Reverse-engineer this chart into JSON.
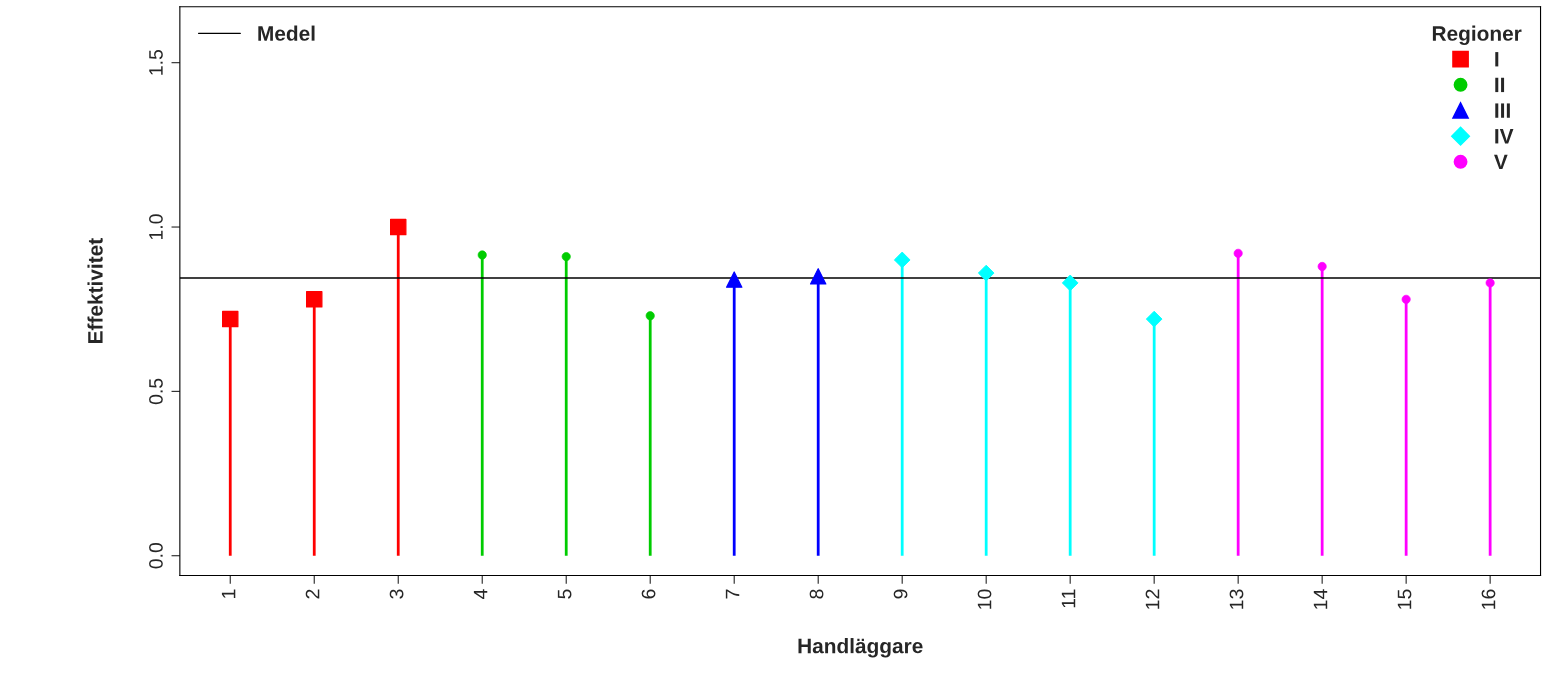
{
  "chart_data": {
    "type": "lollipop",
    "xlabel": "Handläggare",
    "ylabel": "Effektivitet",
    "legend_title": "Regioner",
    "legend": "top right",
    "grid": false,
    "categories": [
      "1",
      "2",
      "3",
      "4",
      "5",
      "6",
      "7",
      "8",
      "9",
      "10",
      "11",
      "12",
      "13",
      "14",
      "15",
      "16"
    ],
    "ylim": [
      -0.06,
      1.67
    ],
    "yticks": [
      {
        "value": 0,
        "label": "0.0"
      },
      {
        "value": 0.5,
        "label": "0.5"
      },
      {
        "value": 1,
        "label": "1.0"
      },
      {
        "value": 1.5,
        "label": "1.5"
      }
    ],
    "series": [
      {
        "name": "I",
        "color": "#ff0000",
        "marker": "square",
        "values": [
          0.72,
          0.78,
          1.0,
          null,
          null,
          null,
          null,
          null,
          null,
          null,
          null,
          null,
          null,
          null,
          null,
          null
        ]
      },
      {
        "name": "II",
        "color": "#00cc00",
        "marker": "circle",
        "values": [
          null,
          null,
          null,
          0.915,
          0.91,
          0.73,
          null,
          null,
          null,
          null,
          null,
          null,
          null,
          null,
          null,
          null
        ]
      },
      {
        "name": "III",
        "color": "#0000ff",
        "marker": "triangle",
        "values": [
          null,
          null,
          null,
          null,
          null,
          null,
          0.84,
          0.85,
          null,
          null,
          null,
          null,
          null,
          null,
          null,
          null
        ]
      },
      {
        "name": "IV",
        "color": "#00ffff",
        "marker": "diamond",
        "values": [
          null,
          null,
          null,
          null,
          null,
          null,
          null,
          null,
          0.9,
          0.86,
          0.83,
          0.72,
          null,
          null,
          null,
          null
        ]
      },
      {
        "name": "V",
        "color": "#ff00ff",
        "marker": "circle",
        "values": [
          null,
          null,
          null,
          null,
          null,
          null,
          null,
          null,
          null,
          null,
          null,
          null,
          0.92,
          0.88,
          0.78,
          0.83
        ]
      }
    ],
    "ref_lines": [
      {
        "axis": "y",
        "value": 0.845,
        "label": "Medel",
        "color": "#000000"
      }
    ]
  }
}
